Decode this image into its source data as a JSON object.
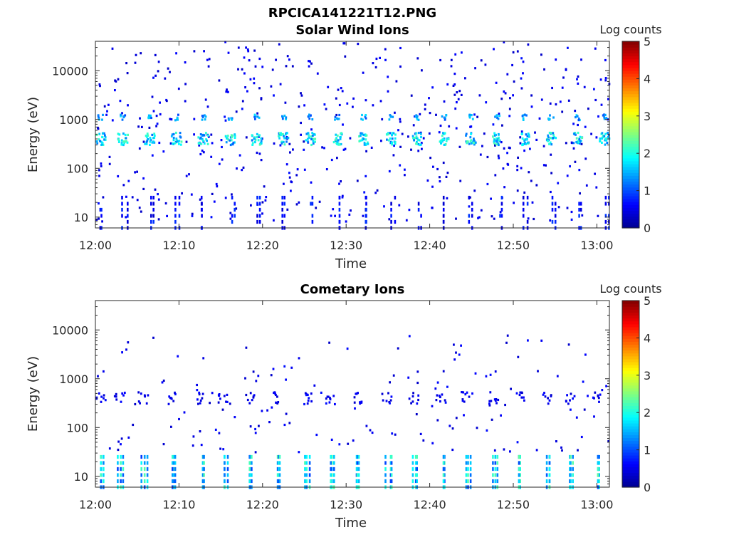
{
  "figure_title": "RPCICA141221T12.PNG",
  "colors": {
    "colormap": [
      "#00008f",
      "#0000ff",
      "#0080ff",
      "#00ffff",
      "#80ff80",
      "#ffff00",
      "#ff8000",
      "#ff0000",
      "#800000"
    ]
  },
  "chart_data": [
    {
      "type": "heatmap",
      "title": "Solar Wind Ions",
      "xlabel": "Time",
      "ylabel": "Energy (eV)",
      "x_ticks": [
        "12:00",
        "12:10",
        "12:20",
        "12:30",
        "12:40",
        "12:50",
        "13:00"
      ],
      "x_range_minutes": [
        0,
        61.5
      ],
      "y_scale": "log",
      "y_range_eV": [
        6,
        40000
      ],
      "y_ticks": [
        {
          "value": 10,
          "label": "10"
        },
        {
          "value": 100,
          "label": "100"
        },
        {
          "value": 1000,
          "label": "1000"
        },
        {
          "value": 10000,
          "label": "10000"
        }
      ],
      "colorbar": {
        "label": "Log counts",
        "range": [
          0,
          5
        ],
        "ticks": [
          "0",
          "1",
          "2",
          "3",
          "4",
          "5"
        ]
      },
      "features": {
        "pulses_minutes": [
          0.5,
          3.2,
          6.4,
          9.6,
          12.8,
          16.0,
          19.2,
          22.4,
          25.6,
          28.8,
          32.0,
          35.2,
          38.4,
          41.6,
          44.8,
          48.0,
          51.2,
          54.4,
          57.6,
          60.8
        ],
        "main_band": {
          "energy_eV": 400,
          "log_counts": 2.0
        },
        "secondary_band": {
          "energy_eV": 1100,
          "log_counts": 1.6
        },
        "low_energy_bursts": {
          "energy_range_eV": [
            6,
            25
          ],
          "log_counts": 0.7
        },
        "scatter_background": {
          "energy_range_eV": [
            8,
            40000
          ],
          "log_counts": 0.3
        }
      }
    },
    {
      "type": "heatmap",
      "title": "Cometary Ions",
      "xlabel": "Time",
      "ylabel": "Energy (eV)",
      "x_ticks": [
        "12:00",
        "12:10",
        "12:20",
        "12:30",
        "12:40",
        "12:50",
        "13:00"
      ],
      "x_range_minutes": [
        0,
        61.5
      ],
      "y_scale": "log",
      "y_range_eV": [
        6,
        40000
      ],
      "y_ticks": [
        {
          "value": 10,
          "label": "10"
        },
        {
          "value": 100,
          "label": "100"
        },
        {
          "value": 1000,
          "label": "1000"
        },
        {
          "value": 10000,
          "label": "10000"
        }
      ],
      "colorbar": {
        "label": "Log counts",
        "range": [
          0,
          5
        ],
        "ticks": [
          "0",
          "1",
          "2",
          "3",
          "4",
          "5"
        ]
      },
      "features": {
        "pulses_minutes": [
          0.5,
          2.8,
          5.6,
          9.2,
          12.4,
          15.2,
          18.4,
          21.6,
          25.2,
          28.0,
          31.2,
          34.8,
          38.0,
          41.2,
          44.4,
          47.6,
          50.8,
          54.0,
          56.8,
          60.0
        ],
        "main_band": {
          "energy_eV": 400,
          "log_counts": 0.6
        },
        "low_energy_columns": {
          "energy_range_eV": [
            6,
            25
          ],
          "log_counts": 1.8
        },
        "scatter_background": {
          "energy_range_eV": [
            30,
            8000
          ],
          "log_counts": 0.3
        }
      }
    }
  ]
}
